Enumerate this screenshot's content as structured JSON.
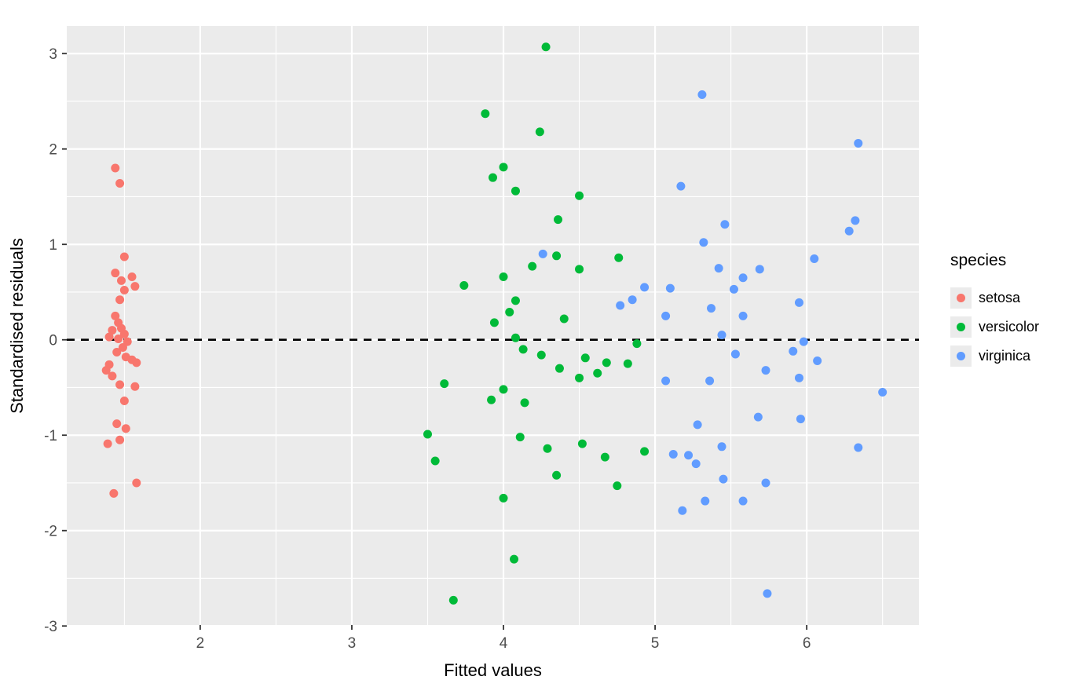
{
  "chart_data": {
    "type": "scatter",
    "title": "",
    "xlabel": "Fitted values",
    "ylabel": "Standardised residuals",
    "xlim": [
      1.12,
      6.74
    ],
    "ylim": [
      -2.99,
      3.29
    ],
    "x_ticks": [
      2,
      3,
      4,
      5,
      6
    ],
    "y_ticks": [
      -3,
      -2,
      -1,
      0,
      1,
      2,
      3
    ],
    "grid": true,
    "panel_background": "#EBEBEB",
    "gridline_color": "#FFFFFF",
    "tick_label_color": "#4D4D4D",
    "legend_title": "species",
    "legend_position": "right",
    "reference_line": {
      "y": 0,
      "style": "dashed",
      "color": "#000000"
    },
    "marker": {
      "shape": "circle",
      "radius": 5.5
    },
    "series": [
      {
        "name": "setosa",
        "color": "#F8766D",
        "points": [
          [
            1.44,
            1.8
          ],
          [
            1.47,
            1.64
          ],
          [
            1.5,
            0.87
          ],
          [
            1.44,
            0.7
          ],
          [
            1.48,
            0.62
          ],
          [
            1.55,
            0.66
          ],
          [
            1.57,
            0.56
          ],
          [
            1.5,
            0.52
          ],
          [
            1.47,
            0.42
          ],
          [
            1.44,
            0.25
          ],
          [
            1.46,
            0.18
          ],
          [
            1.48,
            0.12
          ],
          [
            1.42,
            0.1
          ],
          [
            1.5,
            0.06
          ],
          [
            1.4,
            0.03
          ],
          [
            1.46,
            0.01
          ],
          [
            1.52,
            -0.02
          ],
          [
            1.49,
            -0.08
          ],
          [
            1.45,
            -0.13
          ],
          [
            1.51,
            -0.18
          ],
          [
            1.55,
            -0.21
          ],
          [
            1.58,
            -0.24
          ],
          [
            1.4,
            -0.26
          ],
          [
            1.38,
            -0.32
          ],
          [
            1.42,
            -0.38
          ],
          [
            1.47,
            -0.47
          ],
          [
            1.57,
            -0.49
          ],
          [
            1.5,
            -0.64
          ],
          [
            1.45,
            -0.88
          ],
          [
            1.51,
            -0.93
          ],
          [
            1.47,
            -1.05
          ],
          [
            1.39,
            -1.09
          ],
          [
            1.58,
            -1.5
          ],
          [
            1.43,
            -1.61
          ]
        ]
      },
      {
        "name": "versicolor",
        "color": "#00BA38",
        "points": [
          [
            4.28,
            3.07
          ],
          [
            3.88,
            2.37
          ],
          [
            4.24,
            2.18
          ],
          [
            4.0,
            1.81
          ],
          [
            3.93,
            1.7
          ],
          [
            4.08,
            1.56
          ],
          [
            4.5,
            1.51
          ],
          [
            4.36,
            1.26
          ],
          [
            4.35,
            0.88
          ],
          [
            4.76,
            0.86
          ],
          [
            4.19,
            0.77
          ],
          [
            4.5,
            0.74
          ],
          [
            4.0,
            0.66
          ],
          [
            3.74,
            0.57
          ],
          [
            4.08,
            0.41
          ],
          [
            4.04,
            0.29
          ],
          [
            4.4,
            0.22
          ],
          [
            3.94,
            0.18
          ],
          [
            4.08,
            0.02
          ],
          [
            4.88,
            -0.04
          ],
          [
            4.13,
            -0.1
          ],
          [
            4.25,
            -0.16
          ],
          [
            4.54,
            -0.19
          ],
          [
            4.68,
            -0.24
          ],
          [
            4.82,
            -0.25
          ],
          [
            4.37,
            -0.3
          ],
          [
            4.62,
            -0.35
          ],
          [
            4.5,
            -0.4
          ],
          [
            3.61,
            -0.46
          ],
          [
            4.0,
            -0.52
          ],
          [
            3.92,
            -0.63
          ],
          [
            4.14,
            -0.66
          ],
          [
            3.5,
            -0.99
          ],
          [
            4.11,
            -1.02
          ],
          [
            4.52,
            -1.09
          ],
          [
            4.29,
            -1.14
          ],
          [
            3.55,
            -1.27
          ],
          [
            4.67,
            -1.23
          ],
          [
            4.93,
            -1.17
          ],
          [
            4.35,
            -1.42
          ],
          [
            4.75,
            -1.53
          ],
          [
            4.0,
            -1.66
          ],
          [
            4.07,
            -2.3
          ],
          [
            3.67,
            -2.73
          ]
        ]
      },
      {
        "name": "virginica",
        "color": "#619CFF",
        "points": [
          [
            5.31,
            2.57
          ],
          [
            6.34,
            2.06
          ],
          [
            5.17,
            1.61
          ],
          [
            6.32,
            1.25
          ],
          [
            6.28,
            1.14
          ],
          [
            5.46,
            1.21
          ],
          [
            5.32,
            1.02
          ],
          [
            6.05,
            0.85
          ],
          [
            5.69,
            0.74
          ],
          [
            5.58,
            0.65
          ],
          [
            5.42,
            0.75
          ],
          [
            4.26,
            0.9
          ],
          [
            4.93,
            0.55
          ],
          [
            5.1,
            0.54
          ],
          [
            5.52,
            0.53
          ],
          [
            4.85,
            0.42
          ],
          [
            4.77,
            0.36
          ],
          [
            5.07,
            0.25
          ],
          [
            5.58,
            0.25
          ],
          [
            5.37,
            0.33
          ],
          [
            5.95,
            0.39
          ],
          [
            5.44,
            0.05
          ],
          [
            5.98,
            -0.02
          ],
          [
            5.53,
            -0.15
          ],
          [
            5.91,
            -0.12
          ],
          [
            6.07,
            -0.22
          ],
          [
            5.73,
            -0.32
          ],
          [
            5.07,
            -0.43
          ],
          [
            5.36,
            -0.43
          ],
          [
            5.95,
            -0.4
          ],
          [
            6.5,
            -0.55
          ],
          [
            5.68,
            -0.81
          ],
          [
            5.96,
            -0.83
          ],
          [
            5.28,
            -0.89
          ],
          [
            5.44,
            -1.12
          ],
          [
            6.34,
            -1.13
          ],
          [
            5.12,
            -1.2
          ],
          [
            5.22,
            -1.21
          ],
          [
            5.27,
            -1.3
          ],
          [
            5.45,
            -1.46
          ],
          [
            5.73,
            -1.5
          ],
          [
            5.33,
            -1.69
          ],
          [
            5.58,
            -1.69
          ],
          [
            5.18,
            -1.79
          ],
          [
            5.74,
            -2.66
          ]
        ]
      }
    ]
  }
}
